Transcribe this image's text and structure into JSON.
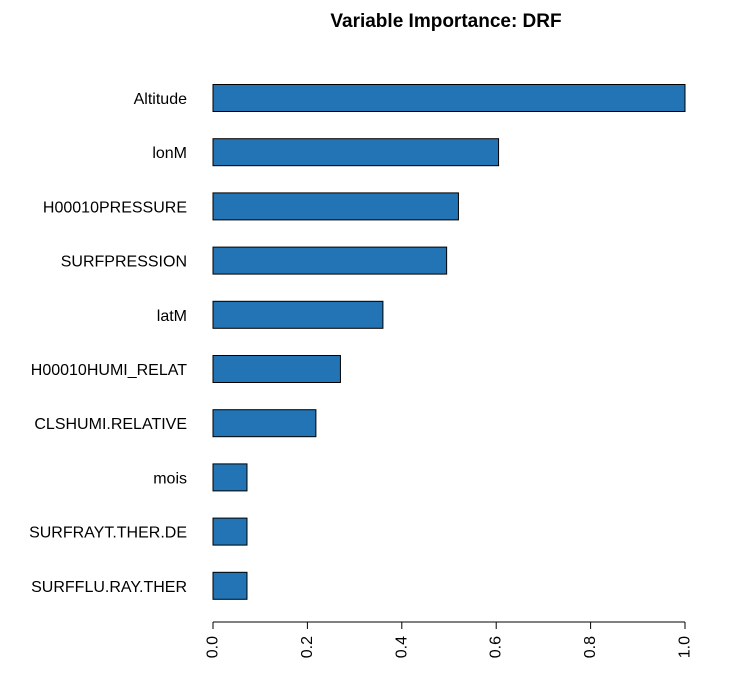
{
  "chart_data": {
    "type": "bar",
    "orientation": "horizontal",
    "title": "Variable Importance: DRF",
    "xlabel": "",
    "ylabel": "",
    "categories": [
      "Altitude",
      "lonM",
      "H00010PRESSURE",
      "SURFPRESSION",
      "latM",
      "H00010HUMI_RELAT",
      "CLSHUMI.RELATIVE",
      "mois",
      "SURFRAYT.THER.DE",
      "SURFFLU.RAY.THER"
    ],
    "values": [
      1.0,
      0.605,
      0.52,
      0.495,
      0.36,
      0.27,
      0.218,
      0.072,
      0.072,
      0.072
    ],
    "xlim": [
      0,
      1
    ],
    "xticks": [
      "0.0",
      "0.2",
      "0.4",
      "0.6",
      "0.8",
      "1.0"
    ],
    "tick_label_orientation": "vertical",
    "bar_color": "#2274b4",
    "bar_edge_color": "#000000",
    "grid": false,
    "legend": "none"
  }
}
